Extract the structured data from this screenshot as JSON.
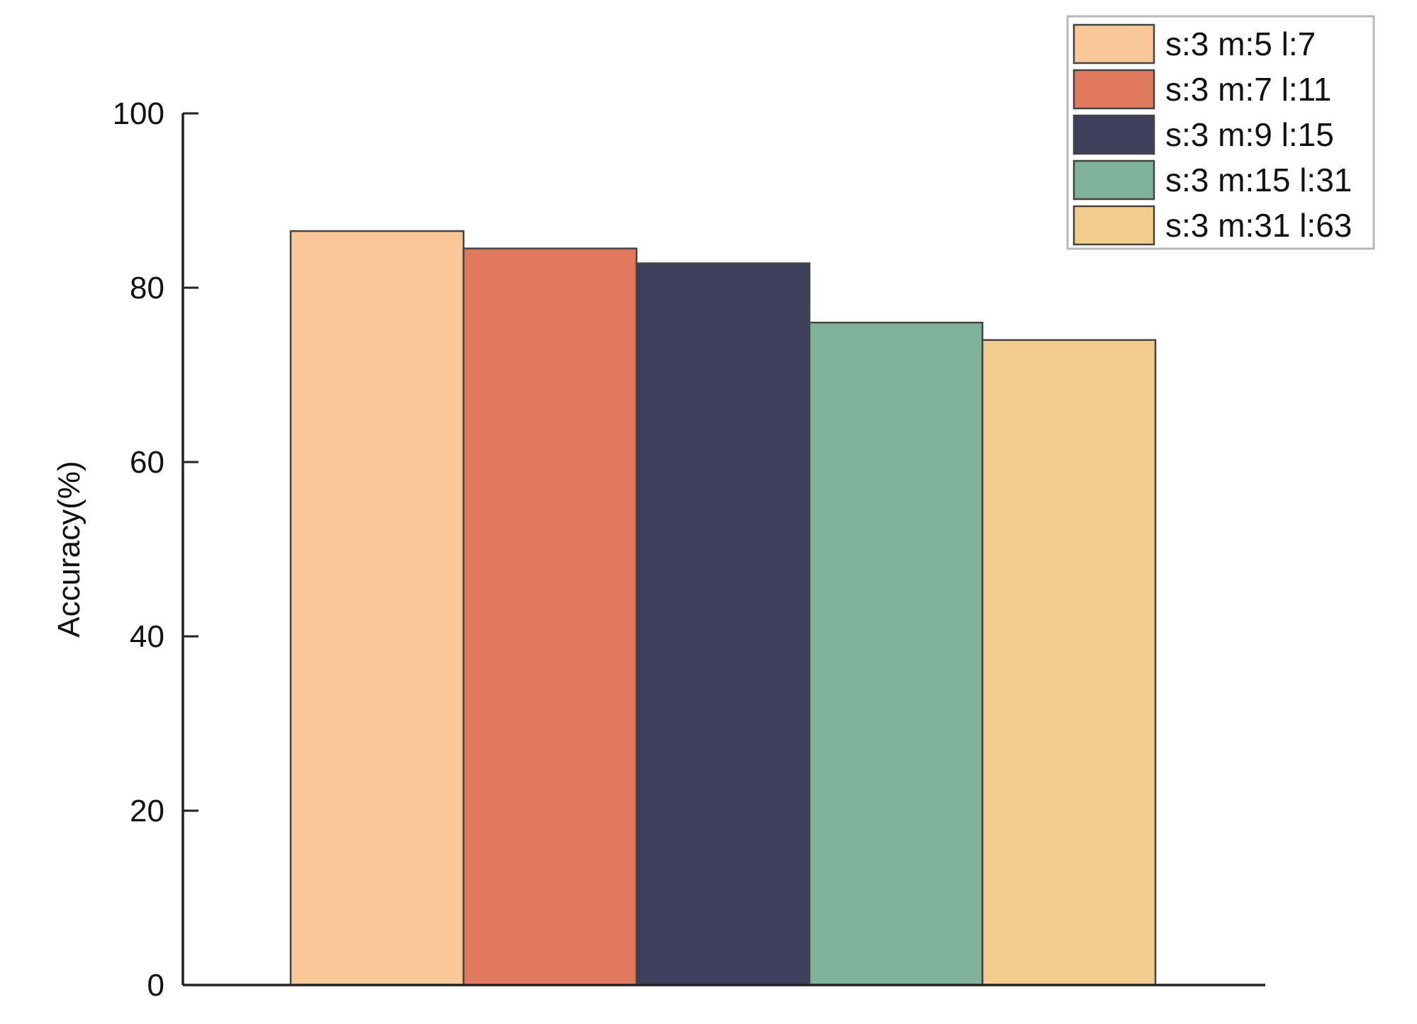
{
  "chart_data": {
    "type": "bar",
    "title": "",
    "xlabel": "",
    "ylabel": "Accuracy(%)",
    "ylim": [
      0,
      100
    ],
    "yticks": [
      0,
      20,
      40,
      60,
      80,
      100
    ],
    "grid": false,
    "legend_position": "top-right",
    "series": [
      {
        "name": "s:3 m:5 l:7",
        "value": 86.5,
        "color": "#FAC898"
      },
      {
        "name": "s:3 m:7 l:11",
        "value": 84.5,
        "color": "#E07A5F"
      },
      {
        "name": "s:3 m:9 l:15",
        "value": 82.8,
        "color": "#3D405B"
      },
      {
        "name": "s:3 m:15 l:31",
        "value": 76.0,
        "color": "#81B29A"
      },
      {
        "name": "s:3 m:31 l:63",
        "value": 74.0,
        "color": "#F2CC8F"
      }
    ]
  }
}
